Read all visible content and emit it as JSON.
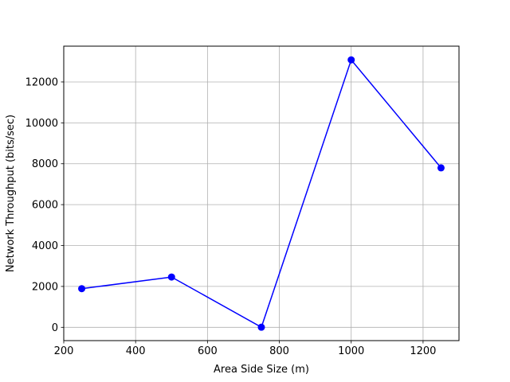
{
  "chart_data": {
    "type": "line",
    "title": "",
    "xlabel": "Area Side Size (m)",
    "ylabel": "Network Throughput (bits/sec)",
    "xlim": [
      200,
      1300
    ],
    "ylim": [
      -650,
      13750
    ],
    "xticks": [
      200,
      400,
      600,
      800,
      1000,
      1200
    ],
    "yticks": [
      0,
      2000,
      4000,
      6000,
      8000,
      10000,
      12000
    ],
    "grid": true,
    "series": [
      {
        "color": "#0000ff",
        "marker": "circle",
        "x": [
          250,
          500,
          750,
          1000,
          1250
        ],
        "y": [
          1890,
          2460,
          5,
          13080,
          7800
        ]
      }
    ]
  }
}
